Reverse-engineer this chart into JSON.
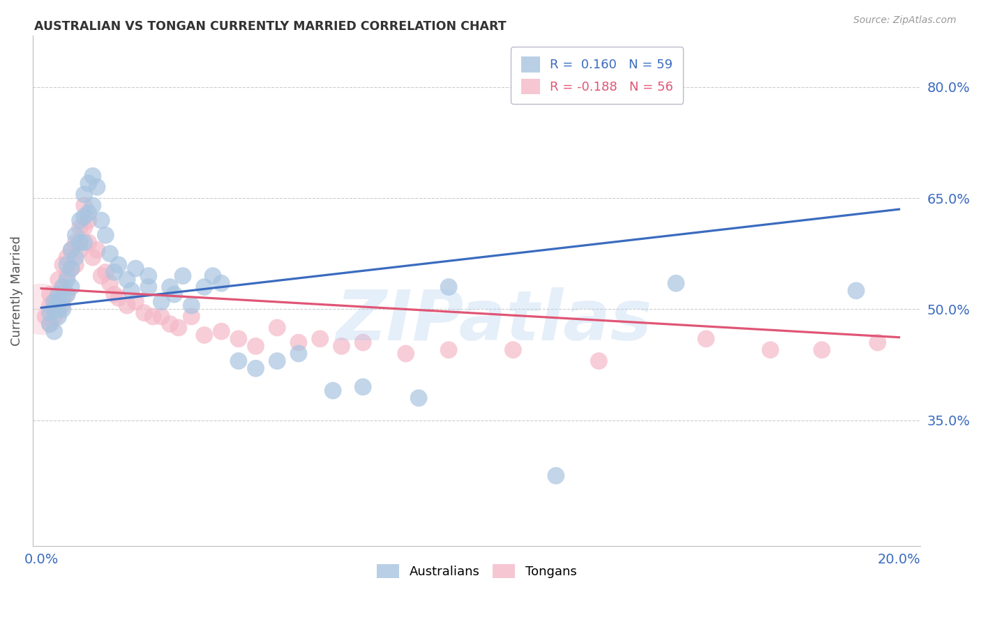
{
  "title": "AUSTRALIAN VS TONGAN CURRENTLY MARRIED CORRELATION CHART",
  "source": "Source: ZipAtlas.com",
  "ylabel": "Currently Married",
  "ytick_labels": [
    "35.0%",
    "50.0%",
    "65.0%",
    "80.0%"
  ],
  "ytick_values": [
    0.35,
    0.5,
    0.65,
    0.8
  ],
  "xlim": [
    -0.002,
    0.205
  ],
  "ylim": [
    0.18,
    0.87
  ],
  "blue_color": "#a8c4e0",
  "pink_color": "#f4b8c8",
  "blue_line_color": "#3a6bbf",
  "pink_line_color": "#e05575",
  "blue_R": 0.16,
  "blue_N": 59,
  "pink_R": -0.188,
  "pink_N": 56,
  "legend_label_blue": "Australians",
  "legend_label_pink": "Tongans",
  "watermark": "ZIPatlas",
  "background_color": "#ffffff",
  "grid_color": "#cccccc",
  "tick_label_color": "#3a6bbf",
  "blue_scatter_x": [
    0.002,
    0.002,
    0.003,
    0.003,
    0.003,
    0.004,
    0.004,
    0.004,
    0.004,
    0.005,
    0.005,
    0.005,
    0.006,
    0.006,
    0.006,
    0.007,
    0.007,
    0.007,
    0.008,
    0.008,
    0.009,
    0.009,
    0.01,
    0.01,
    0.01,
    0.011,
    0.011,
    0.012,
    0.012,
    0.013,
    0.014,
    0.015,
    0.016,
    0.017,
    0.018,
    0.02,
    0.021,
    0.022,
    0.025,
    0.025,
    0.028,
    0.03,
    0.031,
    0.033,
    0.035,
    0.038,
    0.04,
    0.042,
    0.046,
    0.05,
    0.055,
    0.06,
    0.068,
    0.075,
    0.088,
    0.095,
    0.12,
    0.148,
    0.19
  ],
  "blue_scatter_y": [
    0.495,
    0.48,
    0.51,
    0.5,
    0.47,
    0.52,
    0.51,
    0.5,
    0.49,
    0.53,
    0.515,
    0.5,
    0.56,
    0.54,
    0.52,
    0.58,
    0.555,
    0.53,
    0.6,
    0.57,
    0.62,
    0.59,
    0.655,
    0.625,
    0.59,
    0.67,
    0.63,
    0.68,
    0.64,
    0.665,
    0.62,
    0.6,
    0.575,
    0.55,
    0.56,
    0.54,
    0.525,
    0.555,
    0.545,
    0.53,
    0.51,
    0.53,
    0.52,
    0.545,
    0.505,
    0.53,
    0.545,
    0.535,
    0.43,
    0.42,
    0.43,
    0.44,
    0.39,
    0.395,
    0.38,
    0.53,
    0.275,
    0.535,
    0.525
  ],
  "pink_scatter_x": [
    0.001,
    0.002,
    0.002,
    0.002,
    0.003,
    0.003,
    0.004,
    0.004,
    0.005,
    0.005,
    0.005,
    0.006,
    0.006,
    0.006,
    0.007,
    0.007,
    0.008,
    0.008,
    0.009,
    0.009,
    0.01,
    0.01,
    0.011,
    0.011,
    0.012,
    0.013,
    0.014,
    0.015,
    0.016,
    0.017,
    0.018,
    0.02,
    0.022,
    0.024,
    0.026,
    0.028,
    0.03,
    0.032,
    0.035,
    0.038,
    0.042,
    0.046,
    0.05,
    0.055,
    0.06,
    0.065,
    0.07,
    0.075,
    0.085,
    0.095,
    0.11,
    0.13,
    0.155,
    0.17,
    0.182,
    0.195
  ],
  "pink_scatter_y": [
    0.49,
    0.52,
    0.505,
    0.48,
    0.51,
    0.49,
    0.54,
    0.52,
    0.56,
    0.53,
    0.505,
    0.57,
    0.545,
    0.52,
    0.58,
    0.555,
    0.59,
    0.56,
    0.61,
    0.58,
    0.64,
    0.61,
    0.62,
    0.59,
    0.57,
    0.58,
    0.545,
    0.55,
    0.535,
    0.52,
    0.515,
    0.505,
    0.51,
    0.495,
    0.49,
    0.49,
    0.48,
    0.475,
    0.49,
    0.465,
    0.47,
    0.46,
    0.45,
    0.475,
    0.455,
    0.46,
    0.45,
    0.455,
    0.44,
    0.445,
    0.445,
    0.43,
    0.46,
    0.445,
    0.445,
    0.455
  ],
  "blue_trend_x": [
    0.0,
    0.2
  ],
  "blue_trend_y": [
    0.502,
    0.635
  ],
  "pink_trend_x": [
    0.0,
    0.2
  ],
  "pink_trend_y": [
    0.528,
    0.462
  ]
}
